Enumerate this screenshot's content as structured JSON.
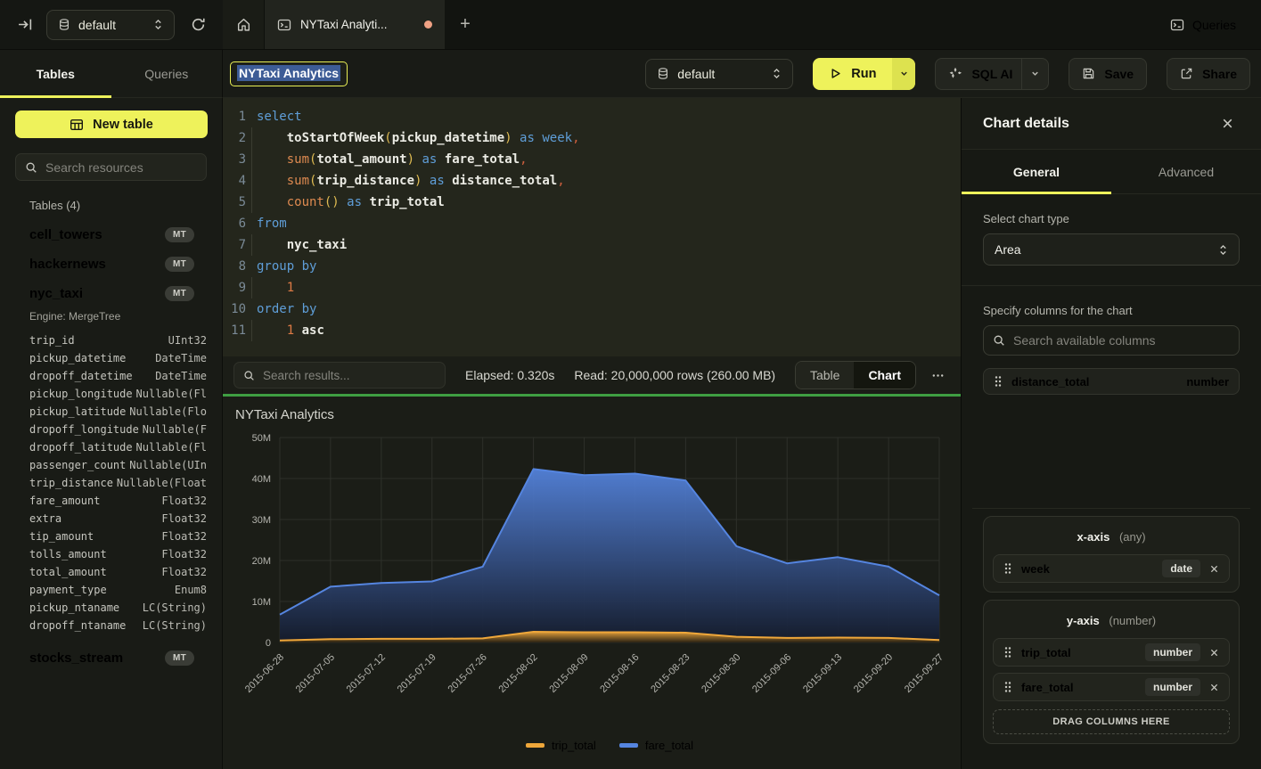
{
  "topbar": {
    "database": "default",
    "tab_title": "NYTaxi Analyti...",
    "queries_label": "Queries"
  },
  "sidebar": {
    "tabs": [
      {
        "label": "Tables",
        "active": true
      },
      {
        "label": "Queries",
        "active": false
      }
    ],
    "new_table_label": "New table",
    "search_placeholder": "Search resources",
    "section_label": "Tables (4)",
    "tables": [
      {
        "name": "cell_towers",
        "badge": "MT"
      },
      {
        "name": "hackernews",
        "badge": "MT"
      },
      {
        "name": "nyc_taxi",
        "badge": "MT",
        "engine": "Engine: MergeTree",
        "columns": [
          {
            "name": "trip_id",
            "type": "UInt32"
          },
          {
            "name": "pickup_datetime",
            "type": "DateTime"
          },
          {
            "name": "dropoff_datetime",
            "type": "DateTime"
          },
          {
            "name": "pickup_longitude",
            "type": "Nullable(Fl"
          },
          {
            "name": "pickup_latitude",
            "type": "Nullable(Flo"
          },
          {
            "name": "dropoff_longitude",
            "type": "Nullable(F"
          },
          {
            "name": "dropoff_latitude",
            "type": "Nullable(Fl"
          },
          {
            "name": "passenger_count",
            "type": "Nullable(UIn"
          },
          {
            "name": "trip_distance",
            "type": "Nullable(Float"
          },
          {
            "name": "fare_amount",
            "type": "Float32"
          },
          {
            "name": "extra",
            "type": "Float32"
          },
          {
            "name": "tip_amount",
            "type": "Float32"
          },
          {
            "name": "tolls_amount",
            "type": "Float32"
          },
          {
            "name": "total_amount",
            "type": "Float32"
          },
          {
            "name": "payment_type",
            "type": "Enum8"
          },
          {
            "name": "pickup_ntaname",
            "type": "LC(String)"
          },
          {
            "name": "dropoff_ntaname",
            "type": "LC(String)"
          }
        ]
      },
      {
        "name": "stocks_stream",
        "badge": "MT"
      }
    ]
  },
  "query_header": {
    "title_value": "NYTaxi Analytics",
    "database": "default",
    "run_label": "Run",
    "sql_ai_label": "SQL AI",
    "save_label": "Save",
    "share_label": "Share"
  },
  "editor": {
    "lines": [
      {
        "n": "1",
        "ind": false,
        "t": [
          [
            "kw",
            "select"
          ]
        ]
      },
      {
        "n": "2",
        "ind": true,
        "t": [
          [
            "id",
            "    toStartOfWeek"
          ],
          [
            "pr",
            "("
          ],
          [
            "id",
            "pickup_datetime"
          ],
          [
            "pr",
            ")"
          ],
          [
            "pl",
            " "
          ],
          [
            "kw",
            "as"
          ],
          [
            "pl",
            " "
          ],
          [
            "kw",
            "week"
          ],
          [
            "cm",
            ","
          ]
        ]
      },
      {
        "n": "3",
        "ind": true,
        "t": [
          [
            "fn",
            "    sum"
          ],
          [
            "pr",
            "("
          ],
          [
            "id",
            "total_amount"
          ],
          [
            "pr",
            ")"
          ],
          [
            "pl",
            " "
          ],
          [
            "kw",
            "as"
          ],
          [
            "pl",
            " "
          ],
          [
            "id",
            "fare_total"
          ],
          [
            "cm",
            ","
          ]
        ]
      },
      {
        "n": "4",
        "ind": true,
        "t": [
          [
            "fn",
            "    sum"
          ],
          [
            "pr",
            "("
          ],
          [
            "id",
            "trip_distance"
          ],
          [
            "pr",
            ")"
          ],
          [
            "pl",
            " "
          ],
          [
            "kw",
            "as"
          ],
          [
            "pl",
            " "
          ],
          [
            "id",
            "distance_total"
          ],
          [
            "cm",
            ","
          ]
        ]
      },
      {
        "n": "5",
        "ind": true,
        "t": [
          [
            "fn",
            "    count"
          ],
          [
            "pr",
            "()"
          ],
          [
            "pl",
            " "
          ],
          [
            "kw",
            "as"
          ],
          [
            "pl",
            " "
          ],
          [
            "id",
            "trip_total"
          ]
        ]
      },
      {
        "n": "6",
        "ind": false,
        "t": [
          [
            "kw",
            "from"
          ]
        ]
      },
      {
        "n": "7",
        "ind": true,
        "t": [
          [
            "id",
            "    nyc_taxi"
          ]
        ]
      },
      {
        "n": "8",
        "ind": false,
        "t": [
          [
            "kw",
            "group by"
          ]
        ]
      },
      {
        "n": "9",
        "ind": true,
        "t": [
          [
            "nm",
            "    1"
          ]
        ]
      },
      {
        "n": "10",
        "ind": false,
        "t": [
          [
            "kw",
            "order by"
          ]
        ]
      },
      {
        "n": "11",
        "ind": true,
        "t": [
          [
            "nm",
            "    1"
          ],
          [
            "pl",
            " "
          ],
          [
            "id",
            "asc"
          ]
        ]
      }
    ]
  },
  "results": {
    "search_placeholder": "Search results...",
    "elapsed": "Elapsed: 0.320s",
    "read": "Read: 20,000,000 rows (260.00 MB)",
    "views": [
      "Table",
      "Chart"
    ],
    "active_view": "Chart"
  },
  "chart_data": {
    "type": "area",
    "title": "NYTaxi Analytics",
    "x": [
      "2015-06-28",
      "2015-07-05",
      "2015-07-12",
      "2015-07-19",
      "2015-07-26",
      "2015-08-02",
      "2015-08-09",
      "2015-08-16",
      "2015-08-23",
      "2015-08-30",
      "2015-09-06",
      "2015-09-13",
      "2015-09-20",
      "2015-09-27"
    ],
    "series": [
      {
        "name": "trip_total",
        "color": "#efa73a",
        "fade": "#2b2212",
        "values": [
          500000,
          800000,
          900000,
          900000,
          1000000,
          2600000,
          2500000,
          2500000,
          2400000,
          1400000,
          1100000,
          1200000,
          1100000,
          600000
        ]
      },
      {
        "name": "fare_total",
        "color": "#5585e0",
        "fade": "#141b2b",
        "values": [
          6800000,
          13600000,
          14500000,
          14900000,
          18500000,
          42300000,
          40800000,
          41200000,
          39500000,
          23500000,
          19300000,
          20800000,
          18500000,
          11500000
        ]
      }
    ],
    "ylim": [
      0,
      50000000
    ],
    "yticks": [
      "0",
      "10M",
      "20M",
      "30M",
      "40M",
      "50M"
    ],
    "grid": true,
    "legend_position": "bottom"
  },
  "chart_panel": {
    "title": "Chart details",
    "tabs": [
      {
        "label": "General",
        "active": true
      },
      {
        "label": "Advanced",
        "active": false
      }
    ],
    "chart_type_label": "Select chart type",
    "chart_type_value": "Area",
    "columns_label": "Specify columns for the chart",
    "columns_search_placeholder": "Search available columns",
    "available_columns": [
      {
        "name": "distance_total",
        "type": "number"
      }
    ],
    "x_axis": {
      "title": "x-axis",
      "hint": "(any)",
      "items": [
        {
          "name": "week",
          "type": "date"
        }
      ]
    },
    "y_axis": {
      "title": "y-axis",
      "hint": "(number)",
      "items": [
        {
          "name": "trip_total",
          "type": "number"
        },
        {
          "name": "fare_total",
          "type": "number"
        }
      ]
    },
    "drop_label": "DRAG COLUMNS HERE"
  },
  "colors": {
    "accent_yellow": "#eef25b",
    "success_green": "#3f9e42",
    "selection_blue": "#3d5c96",
    "tab_dot_orange": "#efa184",
    "series_trip_total": "#efa73a",
    "series_fare_total": "#5585e0"
  }
}
